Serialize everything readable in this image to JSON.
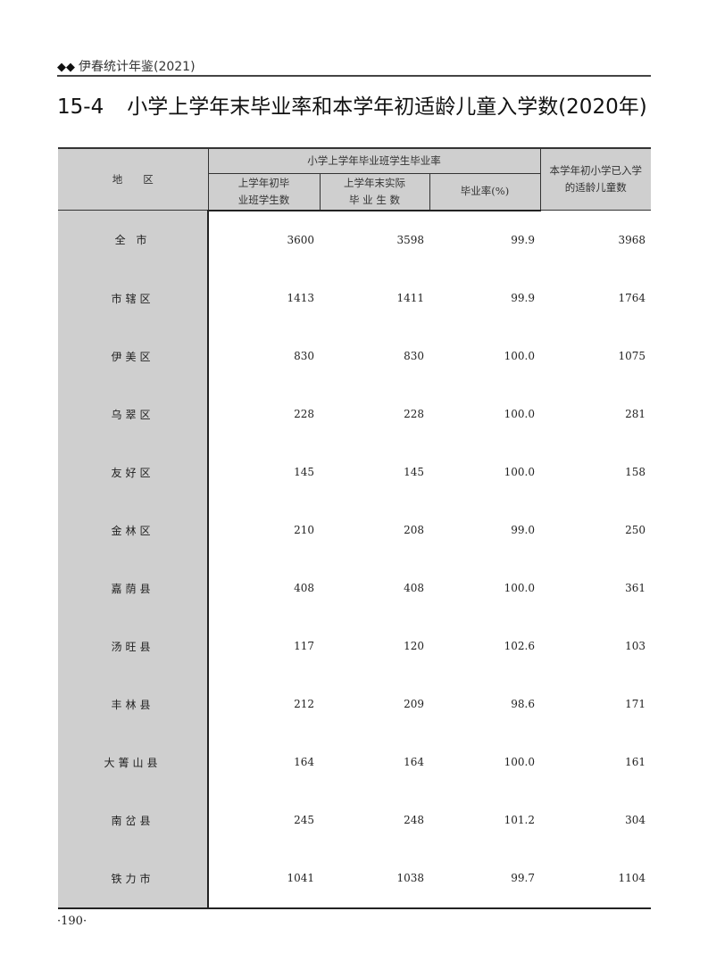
{
  "running_header": {
    "mark": "◆◆",
    "text": "伊春统计年鉴(2021)"
  },
  "title": {
    "number": "15-4",
    "text": "小学上学年末毕业率和本学年初适龄儿童入学数(2020年)"
  },
  "table": {
    "headers": {
      "region": "地　　区",
      "group": "小学上学年毕业班学生毕业率",
      "col1": [
        "上学年初毕",
        "业班学生数"
      ],
      "col2": [
        "上学年末实际",
        "毕 业 生 数"
      ],
      "col3": "毕业率(%)",
      "col4": [
        "本学年初小学已入学",
        "的适龄儿童数"
      ]
    },
    "rows": [
      {
        "region": "全 市",
        "c1": "3600",
        "c2": "3598",
        "c3": "99.9",
        "c4": "3968"
      },
      {
        "region": "市辖区",
        "c1": "1413",
        "c2": "1411",
        "c3": "99.9",
        "c4": "1764"
      },
      {
        "region": "伊美区",
        "c1": "830",
        "c2": "830",
        "c3": "100.0",
        "c4": "1075"
      },
      {
        "region": "乌翠区",
        "c1": "228",
        "c2": "228",
        "c3": "100.0",
        "c4": "281"
      },
      {
        "region": "友好区",
        "c1": "145",
        "c2": "145",
        "c3": "100.0",
        "c4": "158"
      },
      {
        "region": "金林区",
        "c1": "210",
        "c2": "208",
        "c3": "99.0",
        "c4": "250"
      },
      {
        "region": "嘉荫县",
        "c1": "408",
        "c2": "408",
        "c3": "100.0",
        "c4": "361"
      },
      {
        "region": "汤旺县",
        "c1": "117",
        "c2": "120",
        "c3": "102.6",
        "c4": "103"
      },
      {
        "region": "丰林县",
        "c1": "212",
        "c2": "209",
        "c3": "98.6",
        "c4": "171"
      },
      {
        "region": "大箐山县",
        "c1": "164",
        "c2": "164",
        "c3": "100.0",
        "c4": "161"
      },
      {
        "region": "南岔县",
        "c1": "245",
        "c2": "248",
        "c3": "101.2",
        "c4": "304"
      },
      {
        "region": "铁力市",
        "c1": "1041",
        "c2": "1038",
        "c3": "99.7",
        "c4": "1104"
      }
    ]
  },
  "page_number": "·190·"
}
